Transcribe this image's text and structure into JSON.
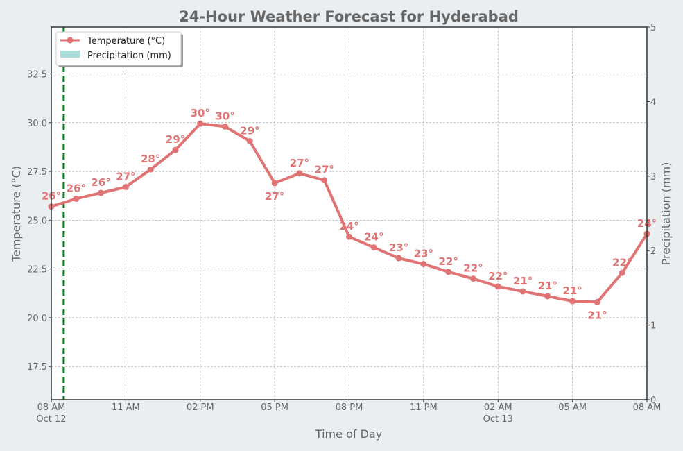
{
  "chart_data": {
    "type": "line",
    "title": "24-Hour Weather Forecast for Hyderabad",
    "xlabel": "Time of Day",
    "ylabel": "Temperature (°C)",
    "y2label": "Precipitation (mm)",
    "ylim": [
      15.8,
      34.9
    ],
    "y2lim": [
      0,
      5
    ],
    "y_ticks": [
      17.5,
      20.0,
      22.5,
      25.0,
      27.5,
      30.0,
      32.5
    ],
    "y2_ticks": [
      0,
      1,
      2,
      3,
      4,
      5
    ],
    "x_hours": [
      0,
      1,
      2,
      3,
      4,
      5,
      6,
      7,
      8,
      9,
      10,
      11,
      12,
      13,
      14,
      15,
      16,
      17,
      18,
      19,
      20,
      21,
      22,
      23,
      24
    ],
    "x_ticks": [
      {
        "hour": 0,
        "line1": "08 AM",
        "line2": "Oct 12"
      },
      {
        "hour": 3,
        "line1": "11 AM",
        "line2": ""
      },
      {
        "hour": 6,
        "line1": "02 PM",
        "line2": ""
      },
      {
        "hour": 9,
        "line1": "05 PM",
        "line2": ""
      },
      {
        "hour": 12,
        "line1": "08 PM",
        "line2": ""
      },
      {
        "hour": 15,
        "line1": "11 PM",
        "line2": ""
      },
      {
        "hour": 18,
        "line1": "02 AM",
        "line2": "Oct 13"
      },
      {
        "hour": 21,
        "line1": "05 AM",
        "line2": ""
      },
      {
        "hour": 24,
        "line1": "08 AM",
        "line2": ""
      }
    ],
    "series": [
      {
        "name": "Temperature (°C)",
        "color": "#e07373",
        "values": [
          25.7,
          26.1,
          26.4,
          26.7,
          27.6,
          28.6,
          29.95,
          29.8,
          29.05,
          26.9,
          27.4,
          27.05,
          24.15,
          23.6,
          23.05,
          22.75,
          22.35,
          22.0,
          21.6,
          21.35,
          21.1,
          20.85,
          20.8,
          22.3,
          24.3
        ],
        "labels": [
          "26°",
          "26°",
          "26°",
          "27°",
          "28°",
          "29°",
          "30°",
          "30°",
          "29°",
          "27°",
          "27°",
          "27°",
          "24°",
          "24°",
          "23°",
          "23°",
          "22°",
          "22°",
          "22°",
          "21°",
          "21°",
          "21°",
          "21°",
          "22°",
          "24°"
        ]
      },
      {
        "name": "Precipitation (mm)",
        "color": "#a8dcd8",
        "values": [
          0,
          0,
          0,
          0,
          0,
          0,
          0,
          0,
          0,
          0,
          0,
          0,
          0,
          0,
          0,
          0,
          0,
          0,
          0,
          0,
          0,
          0,
          0,
          0,
          0
        ]
      }
    ],
    "current_time_hour": 0.5,
    "current_time_color": "#117722",
    "legend_position": "top-left",
    "grid": true
  }
}
